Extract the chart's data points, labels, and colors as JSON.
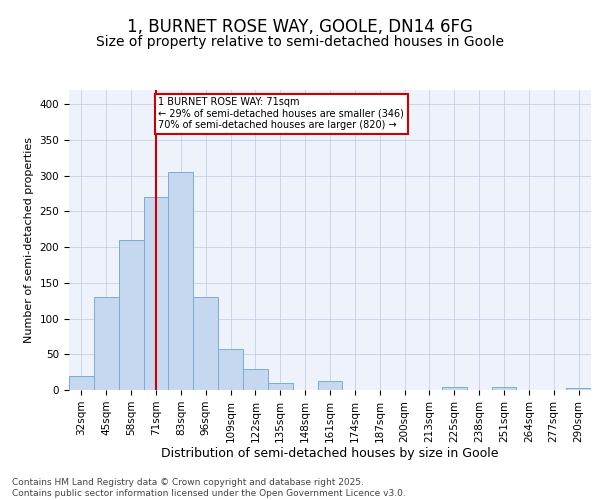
{
  "title1": "1, BURNET ROSE WAY, GOOLE, DN14 6FG",
  "title2": "Size of property relative to semi-detached houses in Goole",
  "xlabel": "Distribution of semi-detached houses by size in Goole",
  "ylabel": "Number of semi-detached properties",
  "categories": [
    "32sqm",
    "45sqm",
    "58sqm",
    "71sqm",
    "83sqm",
    "96sqm",
    "109sqm",
    "122sqm",
    "135sqm",
    "148sqm",
    "161sqm",
    "174sqm",
    "187sqm",
    "200sqm",
    "213sqm",
    "225sqm",
    "238sqm",
    "251sqm",
    "264sqm",
    "277sqm",
    "290sqm"
  ],
  "values": [
    20,
    130,
    210,
    270,
    305,
    130,
    58,
    30,
    10,
    0,
    12,
    0,
    0,
    0,
    0,
    4,
    0,
    4,
    0,
    0,
    3
  ],
  "bar_color": "#c5d8f0",
  "bar_edge_color": "#7aacd6",
  "vline_x": 3,
  "vline_color": "#cc0000",
  "annotation_text": "1 BURNET ROSE WAY: 71sqm\n← 29% of semi-detached houses are smaller (346)\n70% of semi-detached houses are larger (820) →",
  "annotation_box_color": "#cc0000",
  "background_color": "#eef2fa",
  "grid_color": "#b8cce4",
  "ylim": [
    0,
    420
  ],
  "yticks": [
    0,
    50,
    100,
    150,
    200,
    250,
    300,
    350,
    400
  ],
  "footer_text": "Contains HM Land Registry data © Crown copyright and database right 2025.\nContains public sector information licensed under the Open Government Licence v3.0.",
  "title1_fontsize": 12,
  "title2_fontsize": 10,
  "xlabel_fontsize": 9,
  "ylabel_fontsize": 8,
  "tick_fontsize": 7.5,
  "footer_fontsize": 6.5
}
